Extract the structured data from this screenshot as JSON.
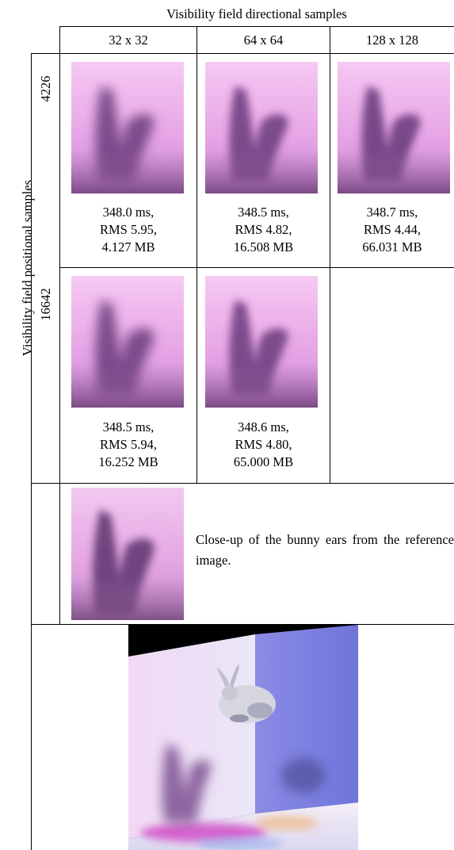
{
  "figure": {
    "column_axis_title": "Visibility field directional samples",
    "row_axis_title": "Visibility field positional samples",
    "columns": [
      "32 x 32",
      "64 x 64",
      "128 x 128"
    ],
    "rows": [
      {
        "label": "4226",
        "cells": [
          {
            "time": "348.0 ms,",
            "rms": "RMS 5.95,",
            "size": "4.127 MB"
          },
          {
            "time": "348.5 ms,",
            "rms": "RMS 4.82,",
            "size": "16.508 MB"
          },
          {
            "time": "348.7 ms,",
            "rms": "RMS 4.44,",
            "size": "66.031 MB"
          }
        ]
      },
      {
        "label": "16642",
        "cells": [
          {
            "time": "348.5 ms,",
            "rms": "RMS 5.94,",
            "size": "16.252 MB"
          },
          {
            "time": "348.6 ms,",
            "rms": "RMS 4.80,",
            "size": "65.000 MB"
          }
        ]
      }
    ],
    "reference_caption": "Close-up of the bunny ears from the reference image."
  }
}
